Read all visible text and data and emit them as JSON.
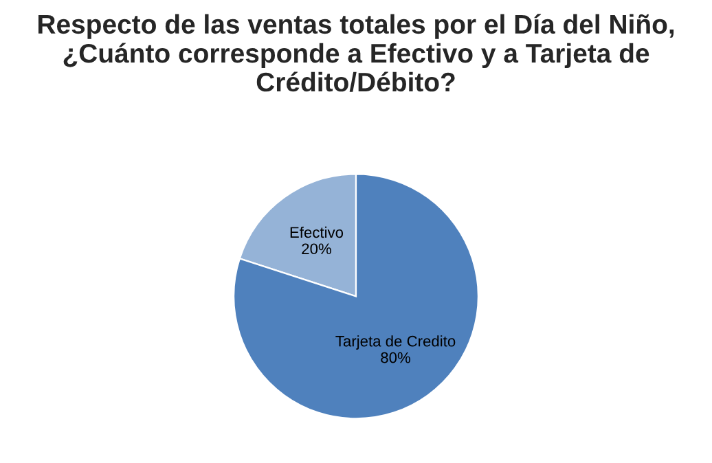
{
  "chart_data": {
    "type": "pie",
    "title": "Respecto de las ventas totales por el Día del Niño, ¿Cuánto corresponde a Efectivo y a Tarjeta de Crédito/Débito?",
    "categories": [
      "Efectivo",
      "Tarjeta de Credito"
    ],
    "values": [
      20,
      80
    ],
    "value_labels": [
      "20%",
      "80%"
    ],
    "colors": [
      "#95b3d7",
      "#4f81bd"
    ],
    "legend": false
  }
}
